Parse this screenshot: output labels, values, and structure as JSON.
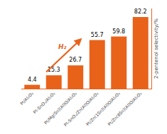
{
  "chart_data": {
    "type": "bar",
    "categories": [
      "Pt/Al₂O₃",
      "Pt-SnOₓ/Al₂O₃",
      "Pt/Mg(Sn)(Al)O/Al₂O₃",
      "Pt-SnOₓ/Zn(Al)O/Al₂O₃",
      "Pt/Zn(1Sn)(Al)O/Al₂O₃",
      "Pt/Zn(8Sn)(Al)O/Al₂O₃"
    ],
    "values": [
      4.4,
      15.3,
      26.7,
      55.7,
      59.8,
      82.2
    ],
    "color": "#E8621A",
    "y_label": "2-pentenol selectivity/%",
    "annotation": "H₂",
    "ylim": [
      0,
      92
    ],
    "data_labels": true,
    "tick_labels": "x",
    "grid": false
  }
}
